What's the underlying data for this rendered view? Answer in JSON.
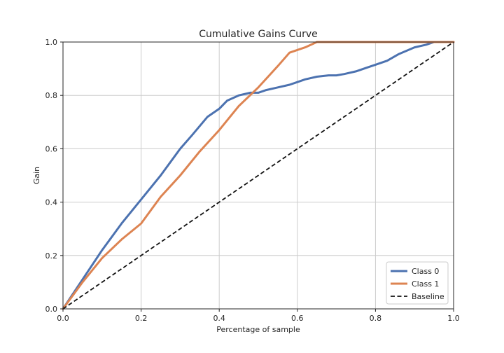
{
  "chart_data": {
    "type": "line",
    "title": "Cumulative Gains Curve",
    "xlabel": "Percentage of sample",
    "ylabel": "Gain",
    "xlim": [
      0.0,
      1.0
    ],
    "ylim": [
      0.0,
      1.0
    ],
    "xticks": [
      "0.0",
      "0.2",
      "0.4",
      "0.6",
      "0.8",
      "1.0"
    ],
    "yticks": [
      "0.0",
      "0.2",
      "0.4",
      "0.6",
      "0.8",
      "1.0"
    ],
    "grid": true,
    "legend_position": "lower-right",
    "series": [
      {
        "name": "Class 0",
        "color": "#4c72b0",
        "style": "solid",
        "x": [
          0.0,
          0.05,
          0.1,
          0.15,
          0.2,
          0.25,
          0.3,
          0.33,
          0.37,
          0.4,
          0.42,
          0.45,
          0.48,
          0.5,
          0.52,
          0.55,
          0.58,
          0.6,
          0.62,
          0.65,
          0.68,
          0.7,
          0.72,
          0.75,
          0.78,
          0.8,
          0.83,
          0.86,
          0.9,
          0.93,
          0.95,
          1.0
        ],
        "y": [
          0.0,
          0.11,
          0.22,
          0.32,
          0.41,
          0.5,
          0.6,
          0.65,
          0.72,
          0.75,
          0.78,
          0.8,
          0.81,
          0.81,
          0.82,
          0.83,
          0.84,
          0.85,
          0.86,
          0.87,
          0.875,
          0.875,
          0.88,
          0.89,
          0.905,
          0.915,
          0.93,
          0.955,
          0.98,
          0.99,
          1.0,
          1.0
        ]
      },
      {
        "name": "Class 1",
        "color": "#dd8452",
        "style": "solid",
        "x": [
          0.0,
          0.05,
          0.1,
          0.15,
          0.2,
          0.25,
          0.3,
          0.35,
          0.4,
          0.45,
          0.5,
          0.55,
          0.58,
          0.62,
          0.65,
          0.7,
          1.0
        ],
        "y": [
          0.0,
          0.1,
          0.19,
          0.26,
          0.32,
          0.42,
          0.5,
          0.59,
          0.67,
          0.76,
          0.83,
          0.91,
          0.96,
          0.98,
          1.0,
          1.0,
          1.0
        ]
      },
      {
        "name": "Baseline",
        "color": "#111111",
        "style": "dashed",
        "x": [
          0.0,
          1.0
        ],
        "y": [
          0.0,
          1.0
        ]
      }
    ]
  }
}
